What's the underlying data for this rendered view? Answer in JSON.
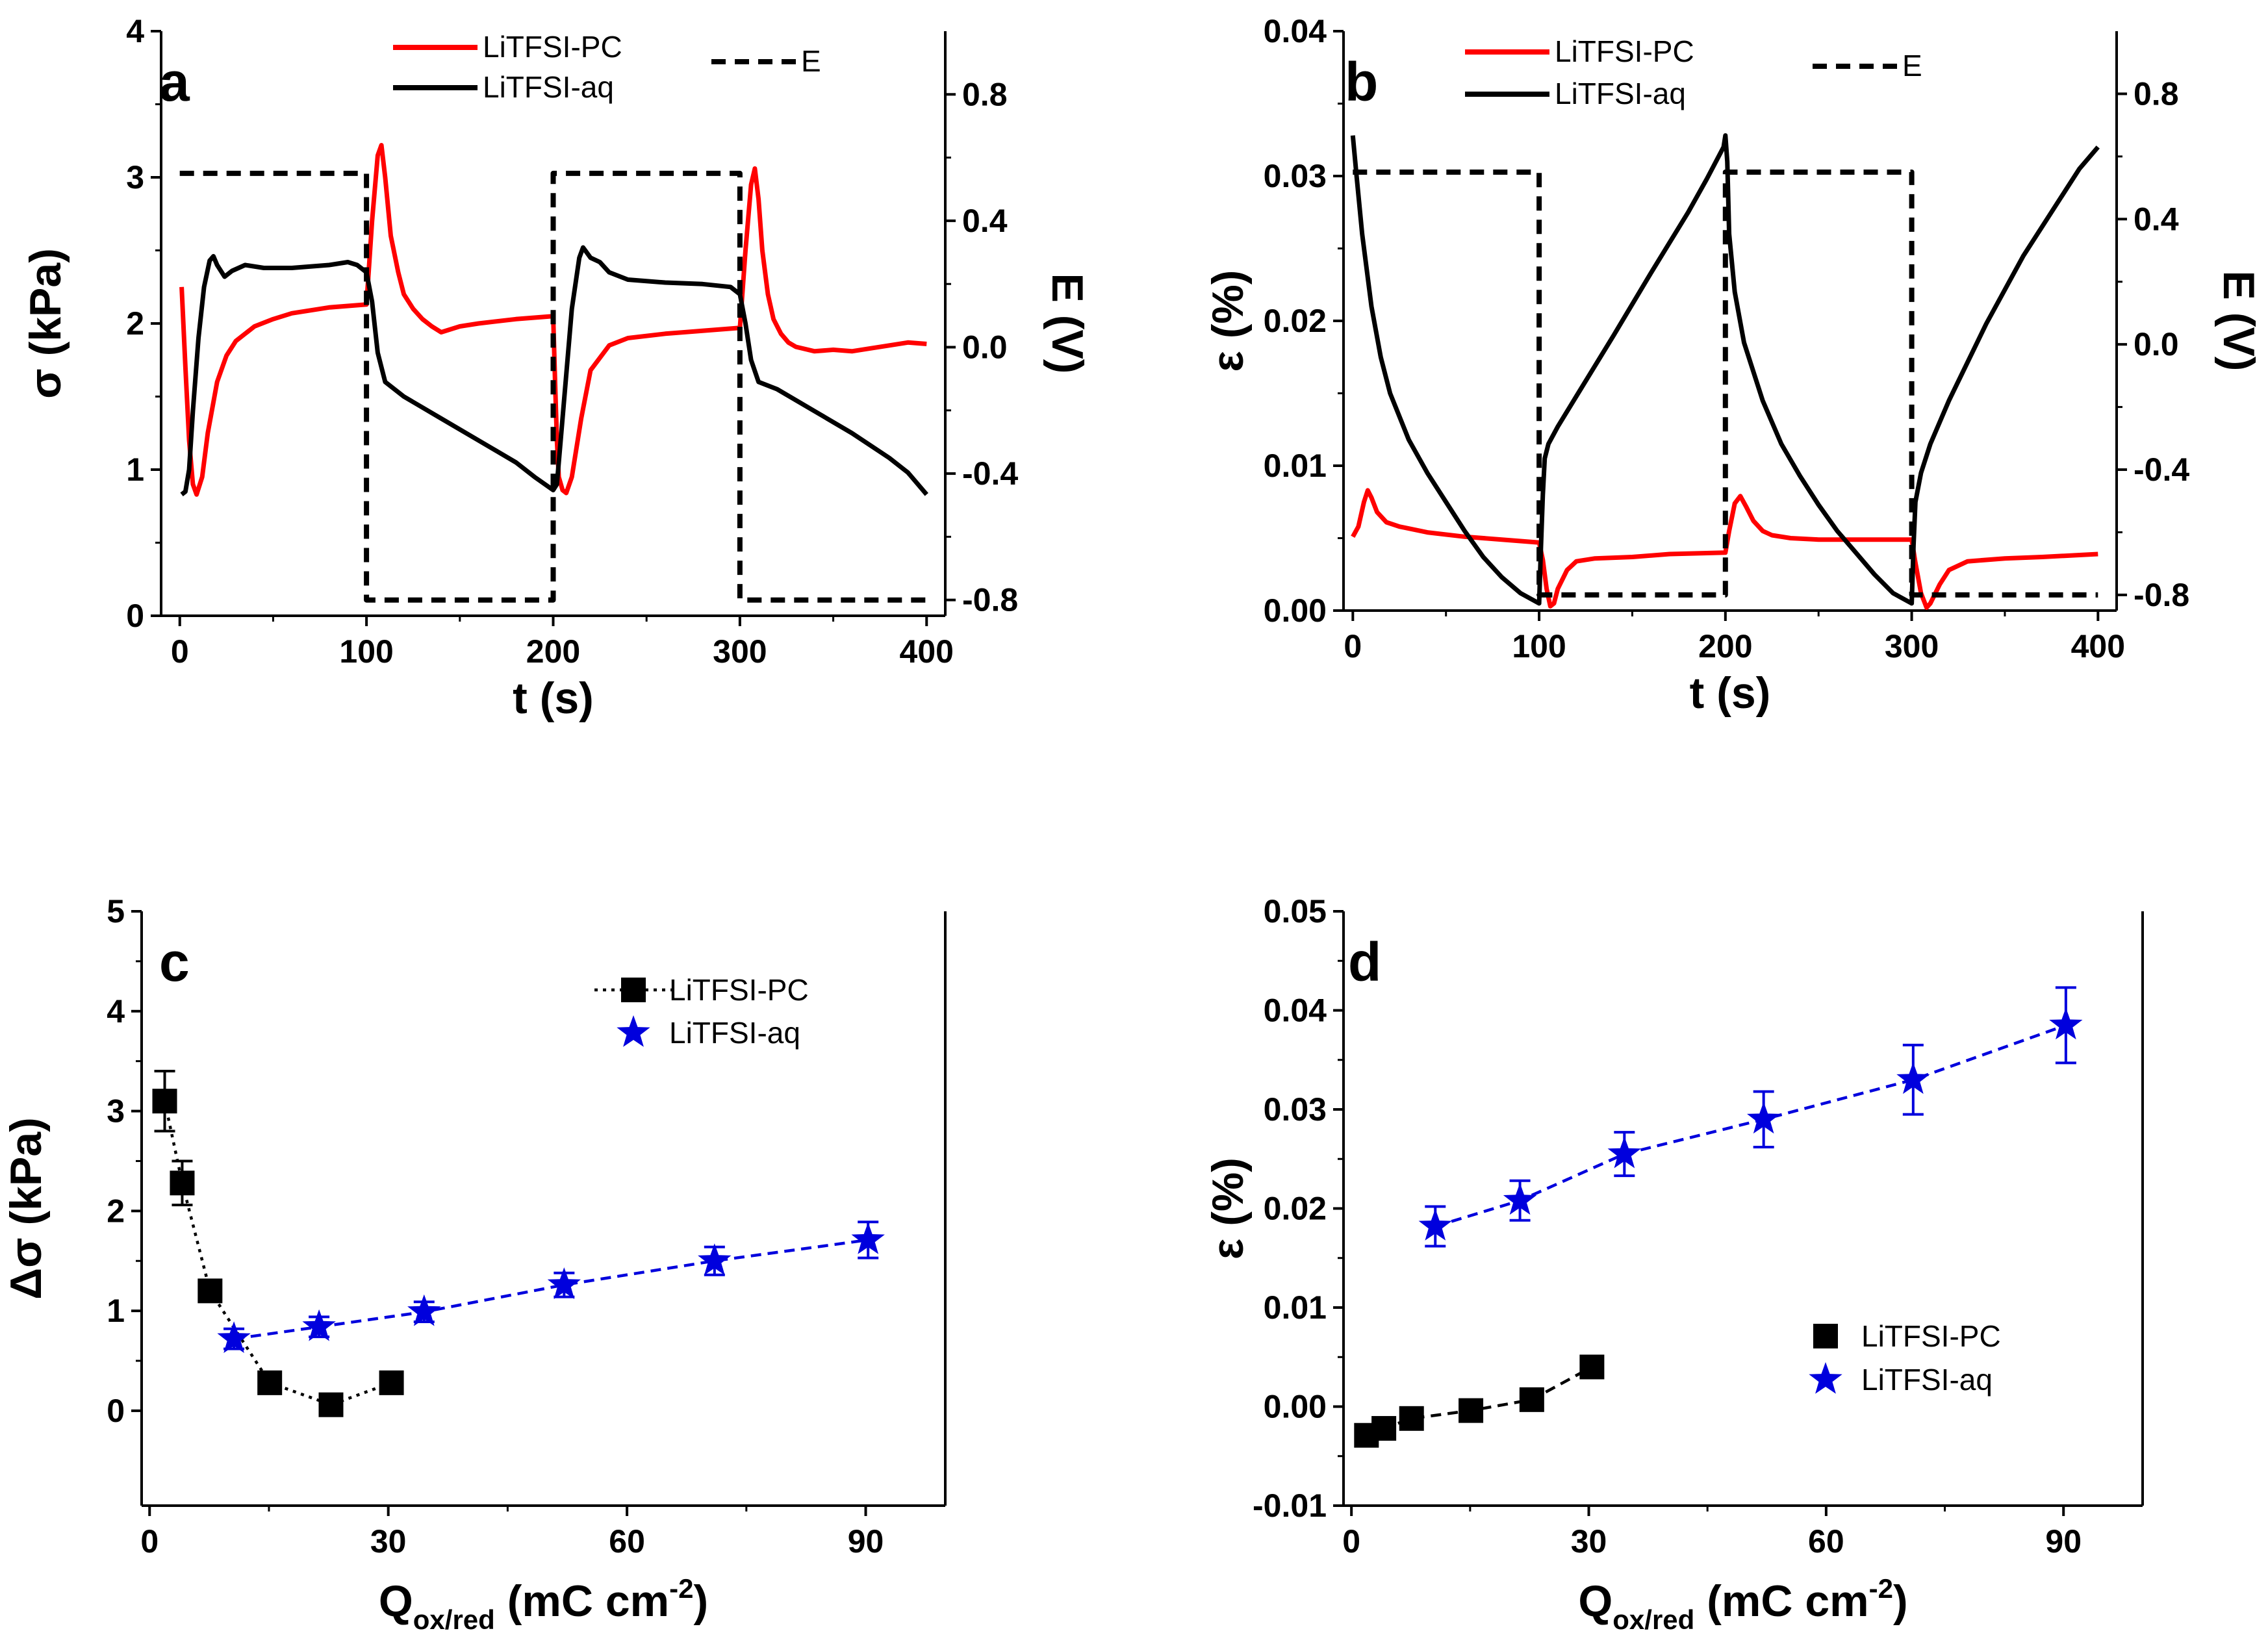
{
  "figure": {
    "colors": {
      "pc": "#ff0000",
      "aq": "#000000",
      "E": "#000000",
      "blue": "#0000dd",
      "black": "#000000"
    }
  },
  "panels": [
    {
      "letter": "a",
      "xlabel": "t (s)",
      "ylabel": "σ (kPa)",
      "y2label": "E (V)",
      "xticks": [
        "0",
        "100",
        "200",
        "300",
        "400"
      ],
      "yticks": [
        "0",
        "1",
        "2",
        "3",
        "4"
      ],
      "y2ticks": [
        "-0.8",
        "-0.4",
        "0.0",
        "0.4",
        "0.8"
      ],
      "legend": [
        "LiTFSI-PC",
        "LiTFSI-aq",
        "E"
      ]
    },
    {
      "letter": "b",
      "xlabel": "t (s)",
      "ylabel": "ε (%)",
      "y2label": "E (V)",
      "xticks": [
        "0",
        "100",
        "200",
        "300",
        "400"
      ],
      "yticks": [
        "0.00",
        "0.01",
        "0.02",
        "0.03",
        "0.04"
      ],
      "y2ticks": [
        "-0.8",
        "-0.4",
        "0.0",
        "0.4",
        "0.8"
      ],
      "legend": [
        "LiTFSI-PC",
        "LiTFSI-aq",
        "E"
      ]
    },
    {
      "letter": "c",
      "xlabel": "Q",
      "xlabel_sub": "ox/red",
      "xlabel_unit": " (mC cm",
      "xlabel_sup": "-2",
      "xlabel_end": ")",
      "ylabel": "Δσ (kPa)",
      "xticks": [
        "0",
        "30",
        "60",
        "90"
      ],
      "yticks": [
        "0",
        "1",
        "2",
        "3",
        "4",
        "5"
      ],
      "legend": [
        "LiTFSI-PC",
        "LiTFSI-aq"
      ]
    },
    {
      "letter": "d",
      "xlabel": "Q",
      "xlabel_sub": "ox/red",
      "xlabel_unit": " (mC cm",
      "xlabel_sup": "-2",
      "xlabel_end": ")",
      "ylabel": "ε (%)",
      "xticks": [
        "0",
        "30",
        "60",
        "90"
      ],
      "yticks": [
        "-0.01",
        "0.00",
        "0.01",
        "0.02",
        "0.03",
        "0.04",
        "0.05"
      ],
      "legend": [
        "LiTFSI-PC",
        "LiTFSI-aq"
      ]
    }
  ],
  "chart_data": [
    {
      "panel": "a",
      "type": "line",
      "xlim": [
        -10,
        410
      ],
      "ylim": [
        0,
        4
      ],
      "y2lim": [
        -0.85,
        1.0
      ],
      "series": [
        {
          "name": "LiTFSI-PC",
          "axis": "left",
          "x": [
            1,
            3,
            5,
            7,
            9,
            12,
            15,
            20,
            25,
            30,
            40,
            50,
            60,
            80,
            100,
            103,
            106,
            108,
            110,
            113,
            117,
            120,
            125,
            130,
            135,
            140,
            150,
            160,
            180,
            200,
            201,
            202,
            203,
            205,
            207,
            210,
            215,
            220,
            230,
            240,
            260,
            280,
            300,
            303,
            306,
            308,
            310,
            312,
            315,
            318,
            322,
            326,
            330,
            340,
            350,
            360,
            370,
            380,
            390,
            400
          ],
          "y": [
            2.25,
            1.7,
            1.2,
            0.9,
            0.83,
            0.95,
            1.25,
            1.6,
            1.78,
            1.88,
            1.98,
            2.03,
            2.07,
            2.11,
            2.13,
            2.7,
            3.15,
            3.22,
            3.0,
            2.6,
            2.35,
            2.2,
            2.1,
            2.03,
            1.98,
            1.94,
            1.98,
            2.0,
            2.03,
            2.05,
            1.6,
            1.2,
            0.95,
            0.86,
            0.84,
            0.95,
            1.35,
            1.68,
            1.85,
            1.9,
            1.93,
            1.95,
            1.97,
            2.5,
            2.95,
            3.06,
            2.85,
            2.5,
            2.2,
            2.03,
            1.93,
            1.87,
            1.84,
            1.81,
            1.82,
            1.81,
            1.83,
            1.85,
            1.87,
            1.86
          ]
        },
        {
          "name": "LiTFSI-aq",
          "axis": "left",
          "x": [
            1,
            3,
            5,
            7,
            10,
            13,
            16,
            18,
            20,
            24,
            28,
            35,
            45,
            60,
            80,
            90,
            95,
            100,
            103,
            106,
            110,
            120,
            140,
            160,
            180,
            190,
            200,
            202,
            204,
            207,
            210,
            214,
            216,
            220,
            225,
            230,
            240,
            260,
            280,
            295,
            300,
            303,
            306,
            310,
            320,
            340,
            360,
            380,
            390,
            400
          ],
          "y": [
            0.83,
            0.85,
            1.0,
            1.4,
            1.9,
            2.25,
            2.43,
            2.46,
            2.4,
            2.32,
            2.36,
            2.4,
            2.38,
            2.38,
            2.4,
            2.42,
            2.4,
            2.35,
            2.15,
            1.8,
            1.6,
            1.5,
            1.35,
            1.2,
            1.05,
            0.95,
            0.86,
            0.9,
            1.2,
            1.65,
            2.1,
            2.45,
            2.52,
            2.45,
            2.42,
            2.35,
            2.3,
            2.28,
            2.27,
            2.25,
            2.2,
            2.0,
            1.75,
            1.6,
            1.55,
            1.4,
            1.25,
            1.08,
            0.98,
            0.83
          ]
        },
        {
          "name": "E",
          "axis": "right",
          "style": "dashed",
          "x": [
            0,
            100,
            100,
            200,
            200,
            300,
            300,
            400
          ],
          "y": [
            0.55,
            0.55,
            -0.8,
            -0.8,
            0.55,
            0.55,
            -0.8,
            -0.8
          ]
        }
      ]
    },
    {
      "panel": "b",
      "type": "line",
      "xlim": [
        -5,
        410
      ],
      "ylim": [
        0,
        0.04
      ],
      "y2lim": [
        -0.85,
        1.0
      ],
      "series": [
        {
          "name": "LiTFSI-PC",
          "axis": "left",
          "x": [
            0,
            3,
            6,
            8,
            10,
            13,
            18,
            25,
            40,
            60,
            80,
            100,
            102,
            104,
            106,
            108,
            110,
            115,
            120,
            130,
            150,
            170,
            200,
            202,
            205,
            208,
            211,
            215,
            220,
            225,
            235,
            250,
            270,
            300,
            302,
            305,
            308,
            310,
            315,
            320,
            330,
            350,
            370,
            400
          ],
          "y": [
            0.0051,
            0.0058,
            0.0075,
            0.0083,
            0.0078,
            0.0068,
            0.0061,
            0.0058,
            0.0054,
            0.0051,
            0.0049,
            0.0047,
            0.0035,
            0.0015,
            0.0003,
            0.0005,
            0.0015,
            0.0028,
            0.0034,
            0.0036,
            0.0037,
            0.0039,
            0.004,
            0.0055,
            0.0074,
            0.0079,
            0.0072,
            0.0062,
            0.0055,
            0.0052,
            0.005,
            0.0049,
            0.0049,
            0.0049,
            0.0033,
            0.0012,
            0.0002,
            0.0005,
            0.0018,
            0.0028,
            0.0034,
            0.0036,
            0.0037,
            0.0039
          ]
        },
        {
          "name": "LiTFSI-aq",
          "axis": "left",
          "x": [
            0,
            2,
            5,
            10,
            15,
            20,
            30,
            40,
            50,
            60,
            70,
            80,
            90,
            100,
            101,
            102,
            103,
            105,
            110,
            120,
            140,
            160,
            180,
            190,
            199,
            200,
            201,
            202,
            205,
            210,
            220,
            230,
            240,
            250,
            260,
            270,
            280,
            290,
            300,
            301,
            302,
            305,
            310,
            320,
            340,
            360,
            380,
            390,
            400
          ],
          "y": [
            0.0328,
            0.03,
            0.026,
            0.021,
            0.0175,
            0.015,
            0.0118,
            0.0095,
            0.0075,
            0.0055,
            0.0037,
            0.0023,
            0.0012,
            0.0005,
            0.0045,
            0.008,
            0.0105,
            0.0115,
            0.0127,
            0.0148,
            0.019,
            0.0233,
            0.0275,
            0.0298,
            0.032,
            0.0328,
            0.031,
            0.026,
            0.022,
            0.0185,
            0.0145,
            0.0115,
            0.0093,
            0.0073,
            0.0055,
            0.004,
            0.0025,
            0.0012,
            0.0005,
            0.0045,
            0.0075,
            0.0095,
            0.0115,
            0.0145,
            0.0198,
            0.0245,
            0.0285,
            0.0305,
            0.032
          ]
        },
        {
          "name": "E",
          "axis": "right",
          "style": "dashed",
          "x": [
            0,
            100,
            100,
            200,
            200,
            300,
            300,
            400
          ],
          "y": [
            0.55,
            0.55,
            -0.8,
            -0.8,
            0.55,
            0.55,
            -0.8,
            -0.8
          ]
        }
      ]
    },
    {
      "panel": "c",
      "type": "scatter",
      "xlim": [
        -1,
        100
      ],
      "ylim": [
        -0.95,
        5
      ],
      "series": [
        {
          "name": "LiTFSI-PC",
          "marker": "square",
          "line": "dotted",
          "x": [
            1.9,
            4.1,
            7.6,
            15.1,
            22.8,
            30.4
          ],
          "y": [
            3.1,
            2.28,
            1.2,
            0.28,
            0.06,
            0.28
          ],
          "err": [
            0.3,
            0.22,
            0.08,
            0.08,
            0.08,
            0.08
          ]
        },
        {
          "name": "LiTFSI-aq",
          "marker": "star",
          "line": "dashed",
          "x": [
            10.6,
            21.3,
            34.5,
            52.1,
            71.0,
            90.3
          ],
          "y": [
            0.72,
            0.84,
            0.99,
            1.26,
            1.5,
            1.71
          ],
          "err": [
            0.1,
            0.1,
            0.1,
            0.12,
            0.14,
            0.18
          ]
        }
      ]
    },
    {
      "panel": "d",
      "type": "scatter",
      "xlim": [
        -1,
        100
      ],
      "ylim": [
        -0.01,
        0.05
      ],
      "series": [
        {
          "name": "LiTFSI-PC",
          "marker": "square",
          "line": "dashed",
          "x": [
            1.9,
            4.1,
            7.6,
            15.1,
            22.8,
            30.4
          ],
          "y": [
            -0.0029,
            -0.0022,
            -0.0012,
            -0.0004,
            0.0007,
            0.004
          ],
          "err": [
            0,
            0,
            0,
            0,
            0,
            0
          ]
        },
        {
          "name": "LiTFSI-aq",
          "marker": "star",
          "line": "dashed",
          "x": [
            10.6,
            21.3,
            34.5,
            52.1,
            71.0,
            90.3
          ],
          "y": [
            0.0182,
            0.0208,
            0.0255,
            0.029,
            0.033,
            0.0385
          ],
          "err": [
            0.002,
            0.002,
            0.0022,
            0.0028,
            0.0035,
            0.0038
          ]
        }
      ]
    }
  ]
}
